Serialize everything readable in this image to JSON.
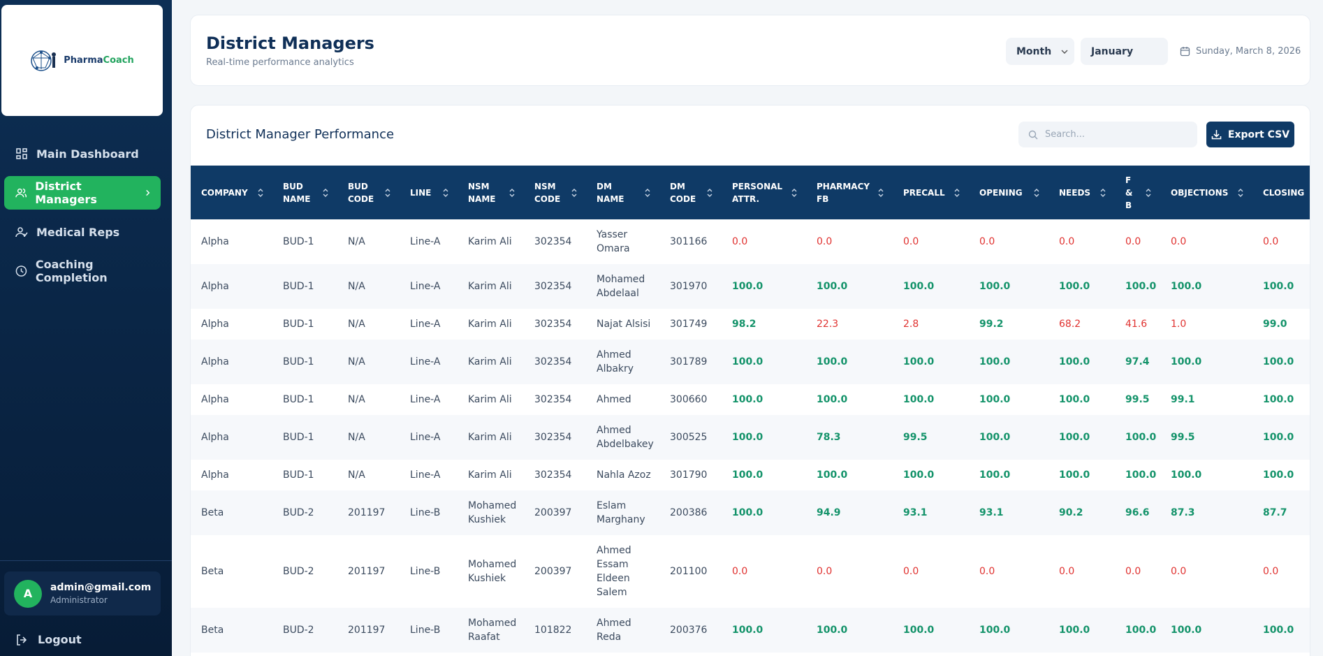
{
  "sidebar": {
    "logo": {
      "brand_a": "Pharma",
      "brand_b": "Coach"
    },
    "nav": [
      "Main Dashboard",
      "District Managers",
      "Medical Reps",
      "Coaching Completion"
    ],
    "user": {
      "avatar": "A",
      "email": "admin@gmail.com",
      "role": "Administrator"
    },
    "logout": "Logout"
  },
  "header": {
    "title": "District Managers",
    "subtitle": "Real-time performance analytics",
    "period_type": "Month",
    "period": "January",
    "date": "Sunday, March 8, 2026"
  },
  "table": {
    "title": "District Manager Performance",
    "search_placeholder": "Search...",
    "export": "Export CSV",
    "columns": [
      "COMPANY",
      "BUD NAME",
      "BUD CODE",
      "LINE",
      "NSM NAME",
      "NSM CODE",
      "DM NAME",
      "DM CODE",
      "PERSONAL ATTR.",
      "PHARMACY FB",
      "PRECALL",
      "OPENING",
      "NEEDS",
      "F & B",
      "OBJECTIONS",
      "CLOSING"
    ],
    "rows": [
      [
        "Alpha",
        "BUD-1",
        "N/A",
        "Line-A",
        "Karim Ali",
        "302354",
        "Yasser Omara",
        "301166",
        "0.0",
        "0.0",
        "0.0",
        "0.0",
        "0.0",
        "0.0",
        "0.0",
        "0.0"
      ],
      [
        "Alpha",
        "BUD-1",
        "N/A",
        "Line-A",
        "Karim Ali",
        "302354",
        "Mohamed Abdelaal",
        "301970",
        "100.0",
        "100.0",
        "100.0",
        "100.0",
        "100.0",
        "100.0",
        "100.0",
        "100.0"
      ],
      [
        "Alpha",
        "BUD-1",
        "N/A",
        "Line-A",
        "Karim Ali",
        "302354",
        "Najat Alsisi",
        "301749",
        "98.2",
        "22.3",
        "2.8",
        "99.2",
        "68.2",
        "41.6",
        "1.0",
        "99.0"
      ],
      [
        "Alpha",
        "BUD-1",
        "N/A",
        "Line-A",
        "Karim Ali",
        "302354",
        "Ahmed Albakry",
        "301789",
        "100.0",
        "100.0",
        "100.0",
        "100.0",
        "100.0",
        "97.4",
        "100.0",
        "100.0"
      ],
      [
        "Alpha",
        "BUD-1",
        "N/A",
        "Line-A",
        "Karim Ali",
        "302354",
        "Ahmed",
        "300660",
        "100.0",
        "100.0",
        "100.0",
        "100.0",
        "100.0",
        "99.5",
        "99.1",
        "100.0"
      ],
      [
        "Alpha",
        "BUD-1",
        "N/A",
        "Line-A",
        "Karim Ali",
        "302354",
        "Ahmed Abdelbakey",
        "300525",
        "100.0",
        "78.3",
        "99.5",
        "100.0",
        "100.0",
        "100.0",
        "99.5",
        "100.0"
      ],
      [
        "Alpha",
        "BUD-1",
        "N/A",
        "Line-A",
        "Karim Ali",
        "302354",
        "Nahla Azoz",
        "301790",
        "100.0",
        "100.0",
        "100.0",
        "100.0",
        "100.0",
        "100.0",
        "100.0",
        "100.0"
      ],
      [
        "Beta",
        "BUD-2",
        "201197",
        "Line-B",
        "Mohamed Kushiek",
        "200397",
        "Eslam Marghany",
        "200386",
        "100.0",
        "94.9",
        "93.1",
        "93.1",
        "90.2",
        "96.6",
        "87.3",
        "87.7"
      ],
      [
        "Beta",
        "BUD-2",
        "201197",
        "Line-B",
        "Mohamed Kushiek",
        "200397",
        "Ahmed Essam Eldeen Salem",
        "201100",
        "0.0",
        "0.0",
        "0.0",
        "0.0",
        "0.0",
        "0.0",
        "0.0",
        "0.0"
      ],
      [
        "Beta",
        "BUD-2",
        "201197",
        "Line-B",
        "Mohamed Raafat",
        "101822",
        "Ahmed Reda",
        "200376",
        "100.0",
        "100.0",
        "100.0",
        "100.0",
        "100.0",
        "100.0",
        "100.0",
        "100.0"
      ]
    ]
  }
}
